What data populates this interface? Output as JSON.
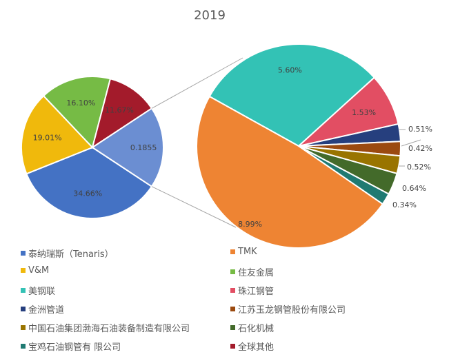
{
  "chart_data": {
    "type": "pie-of-pie",
    "title": "2019",
    "primary": {
      "slices": [
        {
          "name": "泰纳瑞斯（Tenaris）",
          "value": 34.66,
          "label": "34.66%",
          "color": "#4472C4"
        },
        {
          "name": "V&M",
          "value": 19.01,
          "label": "19.01%",
          "color": "#F0B90C"
        },
        {
          "name": "住友金属",
          "value": 16.1,
          "label": "16.10%",
          "color": "#76BB45"
        },
        {
          "name": "全球其他",
          "value": 11.67,
          "label": "11.67%",
          "color": "#A31B2B"
        },
        {
          "name": "",
          "value": 18.55,
          "label": "0.1855",
          "color": "#6B8ED2"
        }
      ]
    },
    "secondary": {
      "slices": [
        {
          "name": "美钢联",
          "value": 5.6,
          "label": "5.60%",
          "color": "#33C2B5"
        },
        {
          "name": "珠江钢管",
          "value": 1.53,
          "label": "1.53%",
          "color": "#E24E63"
        },
        {
          "name": "金洲管道",
          "value": 0.51,
          "label": "0.51%",
          "color": "#263F7E"
        },
        {
          "name": "江苏玉龙钢管股份有限公司",
          "value": 0.42,
          "label": "0.42%",
          "color": "#9B4A10"
        },
        {
          "name": "中国石油集团渤海石油装备制造有限公司",
          "value": 0.52,
          "label": "0.52%",
          "color": "#997400"
        },
        {
          "name": "石化机械",
          "value": 0.64,
          "label": "0.64%",
          "color": "#436A2A"
        },
        {
          "name": "宝鸡石油钢管有 限公司",
          "value": 0.34,
          "label": "0.34%",
          "color": "#1F7A72"
        },
        {
          "name": "TMK",
          "value": 8.99,
          "label": "8.99%",
          "color": "#EE8433"
        }
      ]
    },
    "legend": {
      "placement": "bottom",
      "entries": [
        {
          "name": "泰纳瑞斯（Tenaris）",
          "color": "#4472C4"
        },
        {
          "name": "TMK",
          "color": "#EE8433"
        },
        {
          "name": "V&M",
          "color": "#F0B90C"
        },
        {
          "name": "住友金属",
          "color": "#76BB45"
        },
        {
          "name": "美钢联",
          "color": "#33C2B5"
        },
        {
          "name": "珠江钢管",
          "color": "#E24E63"
        },
        {
          "name": "金洲管道",
          "color": "#263F7E"
        },
        {
          "name": "江苏玉龙钢管股份有限公司",
          "color": "#9B4A10"
        },
        {
          "name": "中国石油集团渤海石油装备制造有限公司",
          "color": "#997400"
        },
        {
          "name": "石化机械",
          "color": "#436A2A"
        },
        {
          "name": "宝鸡石油钢管有 限公司",
          "color": "#1F7A72"
        },
        {
          "name": "全球其他",
          "color": "#A31B2B"
        }
      ]
    }
  }
}
